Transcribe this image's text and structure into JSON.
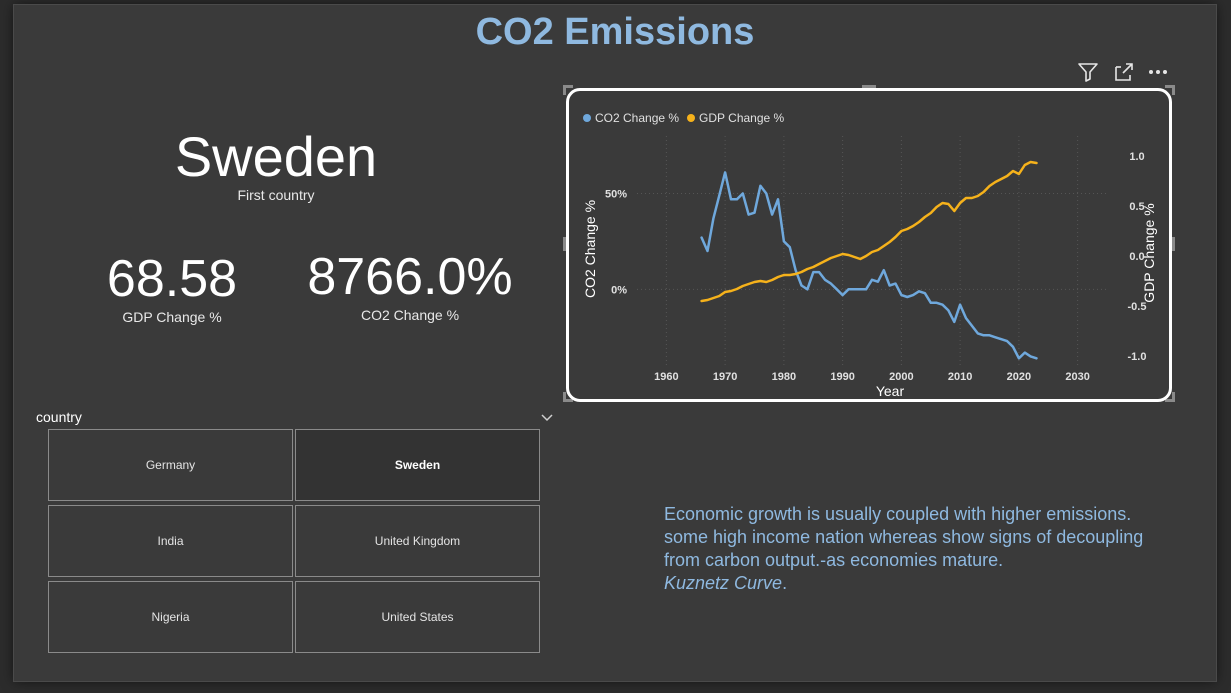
{
  "title": "CO2 Emissions",
  "first_country": {
    "value": "Sweden",
    "caption": "First country"
  },
  "gdp_kpi": {
    "value": "68.58",
    "caption": "GDP Change %"
  },
  "co2_kpi": {
    "value": "8766.0%",
    "caption": "CO2 Change %"
  },
  "toolbar": {
    "icons": [
      "filter-icon",
      "focus-mode-icon",
      "more-options-icon"
    ]
  },
  "slicer": {
    "title": "country",
    "selected": "Sweden",
    "items": [
      "Germany",
      "Sweden",
      "India",
      "United Kingdom",
      "Nigeria",
      "United States"
    ]
  },
  "note": {
    "text": "Economic growth is usually coupled with higher emissions. some high income nation whereas show signs of decoupling from carbon output.-as economies mature.",
    "emphasis": "Kuznetz Curve",
    "tail": "."
  },
  "colors": {
    "co2": "#6fa8dc",
    "gdp": "#f6b21b",
    "title": "#8fb9e0"
  },
  "chart_data": {
    "type": "line",
    "xlabel": "Year",
    "ylabel": "CO2 Change %",
    "y2label": "GDP Change %",
    "xlim": [
      1955,
      2035
    ],
    "xticks": [
      1960,
      1970,
      1980,
      1990,
      2000,
      2010,
      2020,
      2030
    ],
    "ylim": [
      -0.4,
      0.8
    ],
    "yticks": [
      {
        "v": 0,
        "label": "0%"
      },
      {
        "v": 0.5,
        "label": "50%"
      }
    ],
    "y2lim": [
      -1.1,
      1.2
    ],
    "y2ticks": [
      -1.0,
      -0.5,
      0.0,
      0.5,
      1.0
    ],
    "legend_position": "top-left",
    "grid": true,
    "series": [
      {
        "name": "CO2 Change %",
        "axis": "left",
        "color": "#6fa8dc",
        "x": [
          1966,
          1967,
          1968,
          1969,
          1970,
          1971,
          1972,
          1973,
          1974,
          1975,
          1976,
          1977,
          1978,
          1979,
          1980,
          1981,
          1982,
          1983,
          1984,
          1985,
          1986,
          1987,
          1988,
          1989,
          1990,
          1991,
          1992,
          1993,
          1994,
          1995,
          1996,
          1997,
          1998,
          1999,
          2000,
          2001,
          2002,
          2003,
          2004,
          2005,
          2006,
          2007,
          2008,
          2009,
          2010,
          2011,
          2012,
          2013,
          2014,
          2015,
          2016,
          2017,
          2018,
          2019,
          2020,
          2021,
          2022,
          2023
        ],
        "y": [
          0.27,
          0.2,
          0.37,
          0.49,
          0.61,
          0.47,
          0.47,
          0.5,
          0.39,
          0.4,
          0.54,
          0.5,
          0.39,
          0.47,
          0.25,
          0.22,
          0.1,
          0.02,
          0.0,
          0.09,
          0.09,
          0.05,
          0.03,
          0.0,
          -0.03,
          0.0,
          0.0,
          0.0,
          0.0,
          0.05,
          0.04,
          0.1,
          0.02,
          0.03,
          -0.03,
          -0.04,
          -0.03,
          -0.01,
          -0.02,
          -0.07,
          -0.07,
          -0.08,
          -0.11,
          -0.17,
          -0.08,
          -0.15,
          -0.19,
          -0.23,
          -0.24,
          -0.24,
          -0.25,
          -0.26,
          -0.27,
          -0.3,
          -0.36,
          -0.33,
          -0.35,
          -0.36
        ]
      },
      {
        "name": "GDP Change %",
        "axis": "right",
        "color": "#f6b21b",
        "x": [
          1966,
          1967,
          1968,
          1969,
          1970,
          1971,
          1972,
          1973,
          1974,
          1975,
          1976,
          1977,
          1978,
          1979,
          1980,
          1981,
          1982,
          1983,
          1984,
          1985,
          1986,
          1987,
          1988,
          1989,
          1990,
          1991,
          1992,
          1993,
          1994,
          1995,
          1996,
          1997,
          1998,
          1999,
          2000,
          2001,
          2002,
          2003,
          2004,
          2005,
          2006,
          2007,
          2008,
          2009,
          2010,
          2011,
          2012,
          2013,
          2014,
          2015,
          2016,
          2017,
          2018,
          2019,
          2020,
          2021,
          2022,
          2023
        ],
        "y": [
          -0.45,
          -0.44,
          -0.42,
          -0.4,
          -0.36,
          -0.35,
          -0.33,
          -0.3,
          -0.28,
          -0.26,
          -0.25,
          -0.26,
          -0.24,
          -0.21,
          -0.19,
          -0.19,
          -0.18,
          -0.16,
          -0.13,
          -0.11,
          -0.08,
          -0.05,
          -0.02,
          0.0,
          0.02,
          0.01,
          -0.01,
          -0.03,
          0.0,
          0.04,
          0.06,
          0.1,
          0.14,
          0.19,
          0.25,
          0.27,
          0.3,
          0.34,
          0.39,
          0.43,
          0.49,
          0.53,
          0.52,
          0.45,
          0.53,
          0.58,
          0.58,
          0.6,
          0.64,
          0.7,
          0.74,
          0.77,
          0.8,
          0.85,
          0.82,
          0.91,
          0.94,
          0.93
        ]
      }
    ]
  }
}
